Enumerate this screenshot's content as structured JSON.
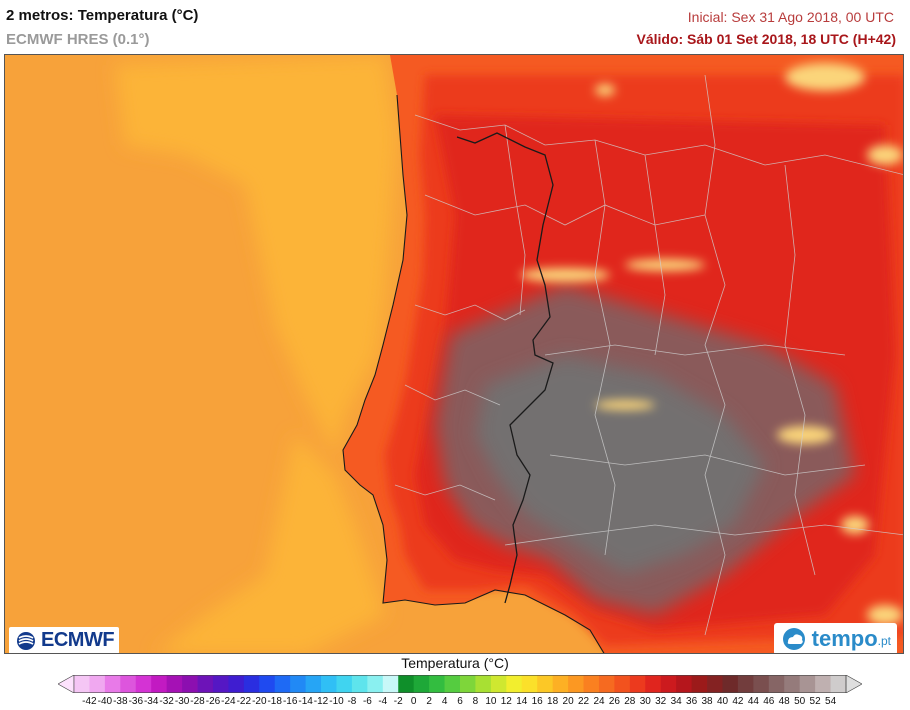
{
  "header": {
    "title": "2 metros: Temperatura (°C)",
    "model": "ECMWF HRES (0.1°)",
    "initial": "Inicial: Sex 31 Ago 2018, 00 UTC",
    "valid": "Válido: Sáb 01 Set 2018, 18 UTC (H+42)"
  },
  "logos": {
    "left_name": "ECMWF",
    "left_icon": "ecmwf-logo-icon",
    "right_name": "tempo",
    "right_suffix": ".pt",
    "right_icon": "tempo-cloud-icon"
  },
  "colorbar": {
    "title": "Temperatura (°C)",
    "ticks": [
      "-42",
      "-40",
      "-38",
      "-36",
      "-34",
      "-32",
      "-30",
      "-28",
      "-26",
      "-24",
      "-22",
      "-20",
      "-18",
      "-16",
      "-14",
      "-12",
      "-10",
      "-8",
      "-6",
      "-4",
      "-2",
      "0",
      "2",
      "4",
      "6",
      "8",
      "10",
      "12",
      "14",
      "16",
      "18",
      "20",
      "22",
      "24",
      "26",
      "28",
      "30",
      "32",
      "34",
      "36",
      "38",
      "40",
      "42",
      "44",
      "46",
      "48",
      "50",
      "52",
      "54"
    ],
    "colors": [
      "#f5c6f5",
      "#f0a8f0",
      "#e87ae8",
      "#dd55dd",
      "#d433d4",
      "#c21ac2",
      "#a511b5",
      "#8c0fb0",
      "#6d13b8",
      "#5517c4",
      "#3f1dd0",
      "#2a2ee0",
      "#1f4af0",
      "#1e6af5",
      "#2189f5",
      "#26a5f5",
      "#30bff5",
      "#40d4f0",
      "#5ee4ec",
      "#8af0f0",
      "#c8f8f8",
      "#0f8f2a",
      "#1ea838",
      "#33bd40",
      "#55cc40",
      "#7ed63a",
      "#a8e033",
      "#cfe830",
      "#f2ee2e",
      "#fbe02a",
      "#fcc826",
      "#fdb024",
      "#fc9822",
      "#fa8020",
      "#f66a20",
      "#f2521e",
      "#ec3a1e",
      "#e0251e",
      "#cc1a1e",
      "#b5161c",
      "#9c1a1a",
      "#842222",
      "#6e2a2a",
      "#723d3d",
      "#7a4f4f",
      "#866565",
      "#957b7b",
      "#a89494",
      "#bfb0b0",
      "#cfcccc"
    ],
    "under_color": "#fde2fd",
    "over_color": "#dedede"
  },
  "map": {
    "ocean_color": "#f7a23a",
    "near_coast_color": "#fcb439",
    "land_warm_color": "#f55a22",
    "land_hot_color": "#ec3a1e",
    "land_red_color": "#e0251e",
    "interior_gray_color": "#8a5a5a",
    "peak_gray_color": "#737070",
    "mountain_color": "#fbd57a",
    "border_color": "#1a1a1a",
    "region_line_color": "#d0d0d0"
  }
}
